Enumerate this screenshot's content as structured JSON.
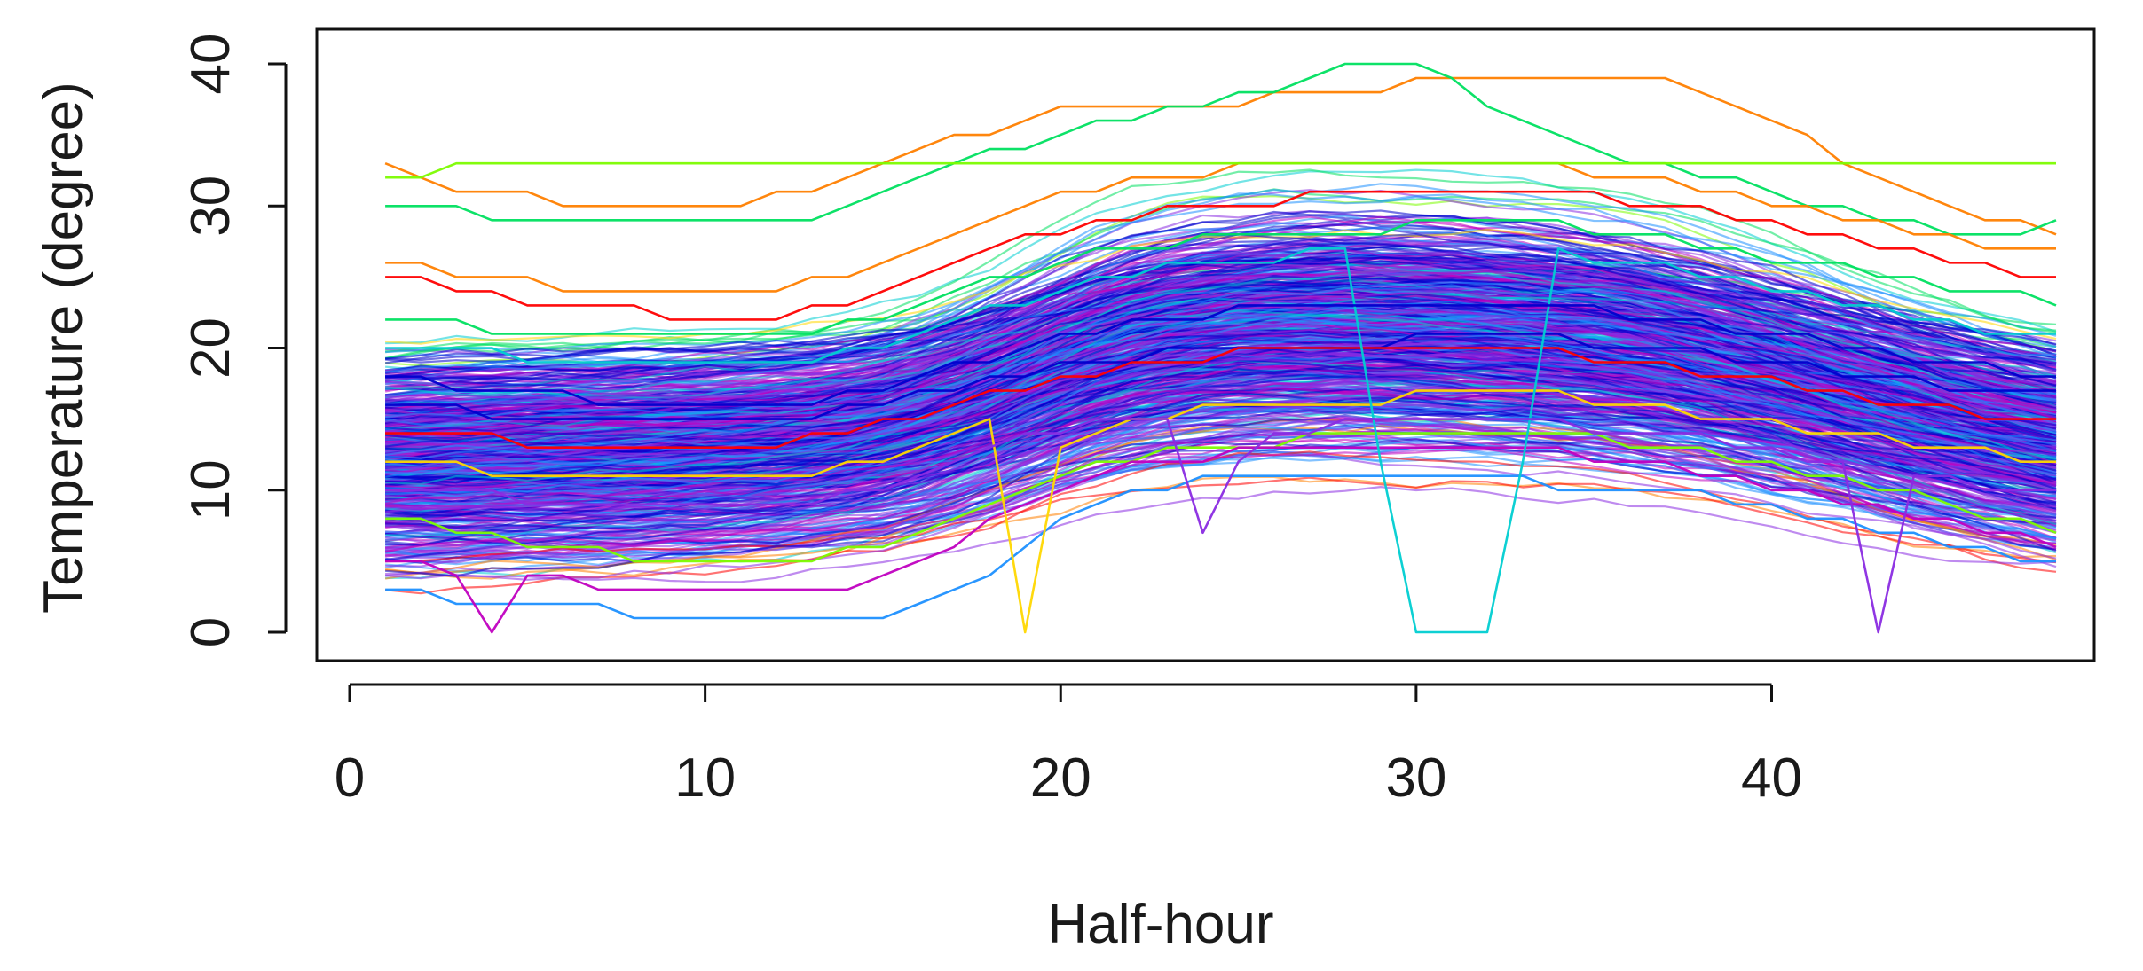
{
  "chart_data": {
    "type": "line",
    "title": "",
    "xlabel": "Half-hour",
    "ylabel": "Temperature (degree)",
    "xlim": [
      0,
      48
    ],
    "ylim": [
      0,
      40
    ],
    "x_ticks": [
      0,
      10,
      20,
      30,
      40
    ],
    "y_ticks": [
      0,
      10,
      20,
      30,
      40
    ],
    "grid": false,
    "legend": "none",
    "n_series_approx": 600,
    "palette": [
      "#ff0000",
      "#ff7f00",
      "#ffd700",
      "#7cfc00",
      "#00e060",
      "#00ced1",
      "#1e90ff",
      "#0000cd",
      "#8a2be2",
      "#c000c0"
    ],
    "x": [
      1,
      2,
      3,
      4,
      5,
      6,
      7,
      8,
      9,
      10,
      11,
      12,
      13,
      14,
      15,
      16,
      17,
      18,
      19,
      20,
      21,
      22,
      23,
      24,
      25,
      26,
      27,
      28,
      29,
      30,
      31,
      32,
      33,
      34,
      35,
      36,
      37,
      38,
      39,
      40,
      41,
      42,
      43,
      44,
      45,
      46,
      47,
      48
    ],
    "series": [
      {
        "values": [
          33,
          32,
          31,
          31,
          31,
          30,
          30,
          30,
          30,
          30,
          30,
          31,
          31,
          32,
          33,
          34,
          35,
          35,
          36,
          37,
          37,
          37,
          37,
          37,
          37,
          38,
          38,
          38,
          38,
          39,
          39,
          39,
          39,
          39,
          39,
          39,
          39,
          38,
          37,
          36,
          35,
          33,
          32,
          31,
          30,
          29,
          29,
          28
        ]
      },
      {
        "values": [
          30,
          30,
          30,
          29,
          29,
          29,
          29,
          29,
          29,
          29,
          29,
          29,
          29,
          30,
          31,
          32,
          33,
          34,
          34,
          35,
          36,
          36,
          37,
          37,
          38,
          38,
          39,
          40,
          40,
          40,
          39,
          37,
          36,
          35,
          34,
          33,
          33,
          32,
          32,
          31,
          30,
          30,
          29,
          29,
          28,
          28,
          28,
          29
        ]
      },
      {
        "values": [
          16,
          16,
          16,
          15,
          15,
          15,
          15,
          15,
          15,
          15,
          15,
          15,
          15,
          16,
          16,
          17,
          17,
          18,
          18,
          19,
          19,
          19,
          20,
          20,
          20,
          20,
          20,
          20,
          20,
          21,
          21,
          21,
          21,
          21,
          20,
          20,
          20,
          20,
          19,
          19,
          19,
          18,
          18,
          18,
          17,
          17,
          17,
          17
        ]
      },
      {
        "values": [
          14,
          14,
          14,
          14,
          13,
          13,
          13,
          13,
          13,
          13,
          13,
          13,
          14,
          14,
          15,
          15,
          16,
          17,
          17,
          18,
          18,
          19,
          19,
          19,
          20,
          20,
          20,
          20,
          20,
          20,
          20,
          20,
          20,
          20,
          19,
          19,
          19,
          18,
          18,
          18,
          17,
          17,
          16,
          16,
          16,
          15,
          15,
          15
        ]
      },
      {
        "values": [
          8,
          8,
          7,
          7,
          6,
          6,
          6,
          5,
          5,
          5,
          5,
          5,
          5,
          6,
          6,
          7,
          8,
          9,
          10,
          11,
          12,
          12,
          13,
          13,
          13,
          13,
          14,
          14,
          14,
          14,
          14,
          14,
          14,
          14,
          14,
          13,
          13,
          13,
          12,
          12,
          11,
          11,
          10,
          10,
          9,
          8,
          8,
          7
        ]
      },
      {
        "values": [
          3,
          3,
          2,
          2,
          2,
          2,
          2,
          1,
          1,
          1,
          1,
          1,
          1,
          1,
          1,
          2,
          3,
          4,
          6,
          8,
          9,
          10,
          10,
          11,
          11,
          11,
          11,
          11,
          11,
          11,
          11,
          11,
          11,
          10,
          10,
          10,
          10,
          10,
          9,
          9,
          8,
          8,
          7,
          7,
          6,
          6,
          5,
          5
        ]
      },
      {
        "values": [
          5,
          5,
          4,
          0,
          4,
          4,
          3,
          3,
          3,
          3,
          3,
          3,
          3,
          3,
          4,
          5,
          6,
          8,
          9,
          10,
          11,
          12,
          12,
          12,
          13,
          13,
          13,
          13,
          13,
          13,
          13,
          13,
          13,
          13,
          12,
          12,
          12,
          11,
          11,
          10,
          10,
          9,
          9,
          8,
          8,
          7,
          7,
          6
        ]
      },
      {
        "values": [
          12,
          12,
          12,
          11,
          11,
          11,
          11,
          11,
          11,
          11,
          11,
          11,
          11,
          12,
          12,
          13,
          14,
          15,
          0,
          13,
          14,
          15,
          15,
          16,
          16,
          16,
          16,
          16,
          16,
          17,
          17,
          17,
          17,
          17,
          16,
          16,
          16,
          15,
          15,
          15,
          14,
          14,
          14,
          13,
          13,
          13,
          12,
          12
        ]
      },
      {
        "values": [
          20,
          20,
          20,
          20,
          19,
          19,
          19,
          19,
          19,
          19,
          19,
          19,
          19,
          20,
          20,
          21,
          22,
          23,
          23,
          24,
          25,
          25,
          26,
          26,
          26,
          26,
          27,
          27,
          12,
          0,
          0,
          0,
          12,
          27,
          26,
          26,
          26,
          25,
          25,
          24,
          24,
          23,
          23,
          22,
          22,
          21,
          21,
          21
        ]
      },
      {
        "values": [
          10,
          10,
          10,
          10,
          9,
          9,
          9,
          9,
          9,
          9,
          9,
          9,
          9,
          10,
          10,
          11,
          12,
          13,
          14,
          14,
          15,
          15,
          15,
          7,
          12,
          14,
          14,
          15,
          15,
          15,
          15,
          15,
          15,
          15,
          14,
          14,
          14,
          14,
          13,
          13,
          12,
          12,
          0,
          11,
          11,
          10,
          10,
          10
        ]
      },
      {
        "values": [
          26,
          26,
          25,
          25,
          25,
          24,
          24,
          24,
          24,
          24,
          24,
          24,
          25,
          25,
          26,
          27,
          28,
          29,
          30,
          31,
          31,
          32,
          32,
          32,
          33,
          33,
          33,
          33,
          33,
          33,
          33,
          33,
          33,
          33,
          32,
          32,
          32,
          31,
          31,
          30,
          30,
          29,
          29,
          28,
          28,
          27,
          27,
          27
        ]
      },
      {
        "values": [
          22,
          22,
          22,
          21,
          21,
          21,
          21,
          21,
          21,
          21,
          21,
          21,
          21,
          22,
          22,
          23,
          24,
          25,
          25,
          26,
          27,
          27,
          27,
          28,
          28,
          28,
          28,
          28,
          28,
          29,
          29,
          29,
          29,
          29,
          28,
          28,
          28,
          27,
          27,
          26,
          26,
          26,
          25,
          25,
          24,
          24,
          24,
          23
        ]
      },
      {
        "values": [
          18,
          18,
          17,
          17,
          17,
          17,
          16,
          16,
          16,
          16,
          16,
          16,
          16,
          17,
          17,
          18,
          19,
          19,
          20,
          21,
          21,
          22,
          22,
          22,
          23,
          23,
          23,
          23,
          23,
          23,
          23,
          23,
          23,
          23,
          23,
          22,
          22,
          22,
          21,
          21,
          21,
          20,
          20,
          19,
          19,
          19,
          18,
          18
        ]
      },
      {
        "values": [
          25,
          25,
          24,
          24,
          23,
          23,
          23,
          23,
          22,
          22,
          22,
          22,
          23,
          23,
          24,
          25,
          26,
          27,
          28,
          28,
          29,
          29,
          30,
          30,
          30,
          30,
          31,
          31,
          31,
          31,
          31,
          31,
          31,
          31,
          31,
          30,
          30,
          30,
          29,
          29,
          28,
          28,
          27,
          27,
          26,
          26,
          25,
          25
        ]
      },
      {
        "values": [
          32,
          32,
          33,
          33,
          33,
          33,
          33,
          33,
          33,
          33,
          33,
          33,
          33,
          33,
          33,
          33,
          33,
          33,
          33,
          33,
          33,
          33,
          33,
          33,
          33,
          33,
          33,
          33,
          33,
          33,
          33,
          33,
          33,
          33,
          33,
          33,
          33,
          33,
          33,
          33,
          33,
          33,
          33,
          33,
          33,
          33,
          33,
          33
        ]
      }
    ]
  }
}
